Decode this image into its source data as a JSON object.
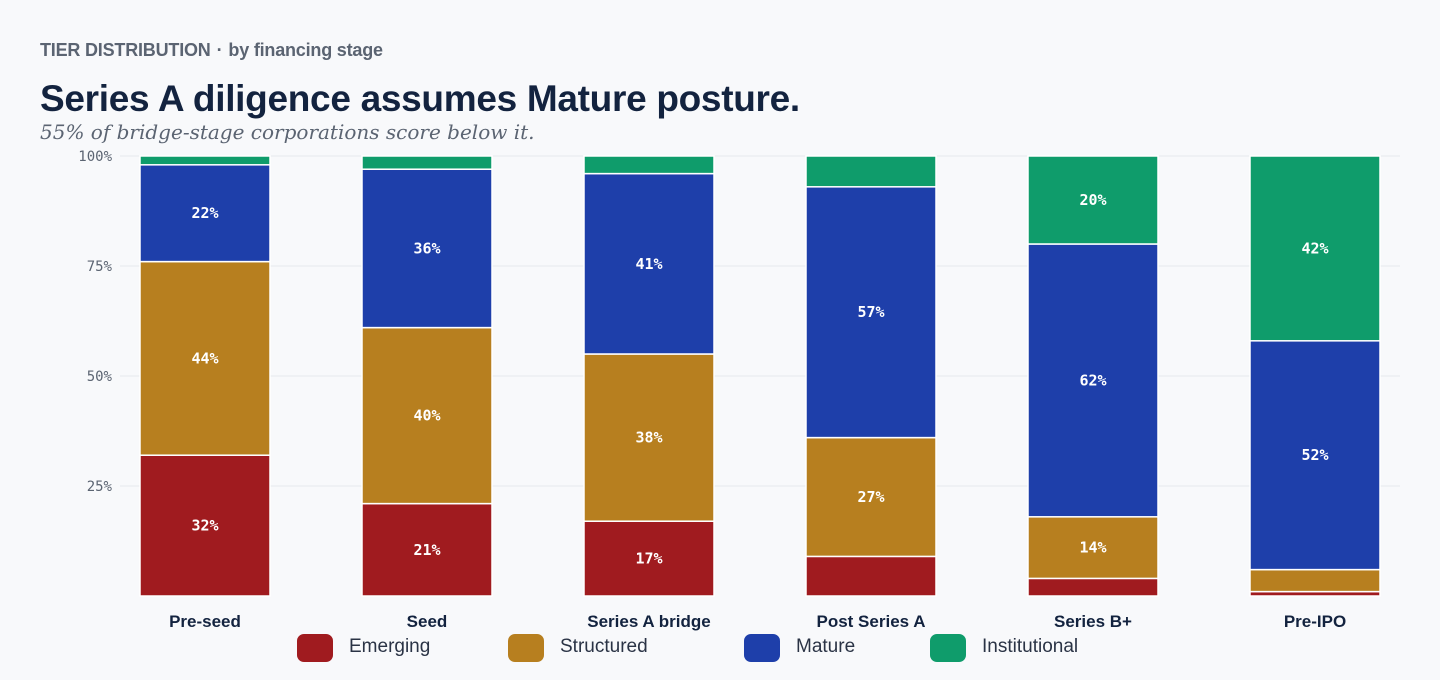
{
  "header": {
    "eyebrow": "TIER DISTRIBUTION",
    "separator": "·",
    "eyebrow_sub": "by financing stage",
    "title": "Series A diligence assumes Mature posture.",
    "subtitle": "55% of bridge-stage corporations score below it."
  },
  "chart_data": {
    "type": "bar",
    "stacked": true,
    "title": "",
    "xlabel": "",
    "ylabel": "",
    "ylim": [
      0,
      100
    ],
    "yticks": [
      25,
      50,
      75,
      100
    ],
    "ytick_labels": [
      "25%",
      "50%",
      "75%",
      "100%"
    ],
    "grid": true,
    "legend_position": "bottom",
    "categories": [
      "Pre-seed",
      "Seed",
      "Series A bridge",
      "Post Series A",
      "Series B+",
      "Pre-IPO"
    ],
    "series": [
      {
        "name": "Emerging",
        "color": "#a01b1f",
        "values": [
          32,
          21,
          17,
          9,
          4,
          1
        ]
      },
      {
        "name": "Structured",
        "color": "#b77f1f",
        "values": [
          44,
          40,
          38,
          27,
          14,
          5
        ]
      },
      {
        "name": "Mature",
        "color": "#1e3faa",
        "values": [
          22,
          36,
          41,
          57,
          62,
          52
        ]
      },
      {
        "name": "Institutional",
        "color": "#0f9c6b",
        "values": [
          2,
          3,
          4,
          7,
          20,
          42
        ]
      }
    ],
    "data_labels": [
      [
        "32%",
        "21%",
        "17%",
        "",
        "",
        ""
      ],
      [
        "44%",
        "40%",
        "38%",
        "27%",
        "14%",
        ""
      ],
      [
        "22%",
        "36%",
        "41%",
        "57%",
        "62%",
        "52%"
      ],
      [
        "",
        "",
        "",
        "",
        "20%",
        "42%"
      ]
    ]
  }
}
